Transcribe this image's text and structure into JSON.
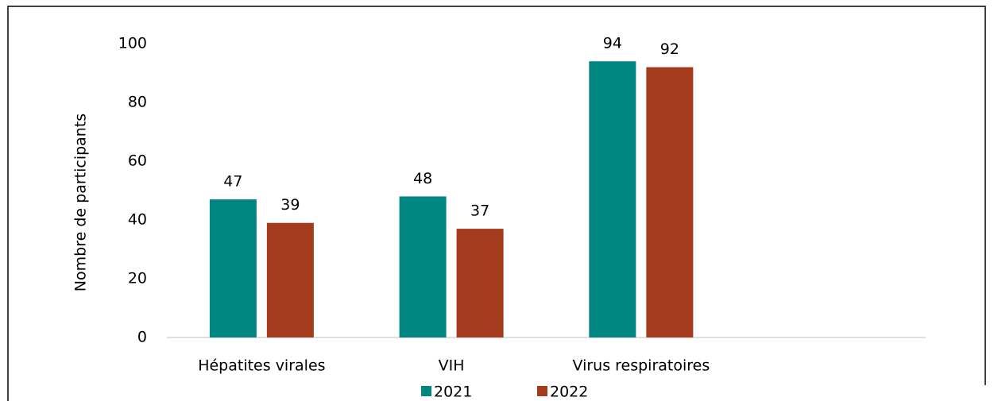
{
  "chart_data": {
    "type": "bar",
    "y_label": "Nombre de participants",
    "categories": [
      "Hépatites virales",
      "VIH",
      "Virus respiratoires",
      null
    ],
    "series": [
      {
        "name": "2021",
        "color": "#008580",
        "values": [
          47,
          48,
          94,
          null
        ]
      },
      {
        "name": "2022",
        "color": "#a33b1c",
        "values": [
          39,
          37,
          92,
          null
        ]
      }
    ],
    "ylim": [
      0,
      100
    ],
    "yticks": [
      0,
      20,
      40,
      60,
      80,
      100
    ],
    "grid": false,
    "legend": "bottom"
  }
}
